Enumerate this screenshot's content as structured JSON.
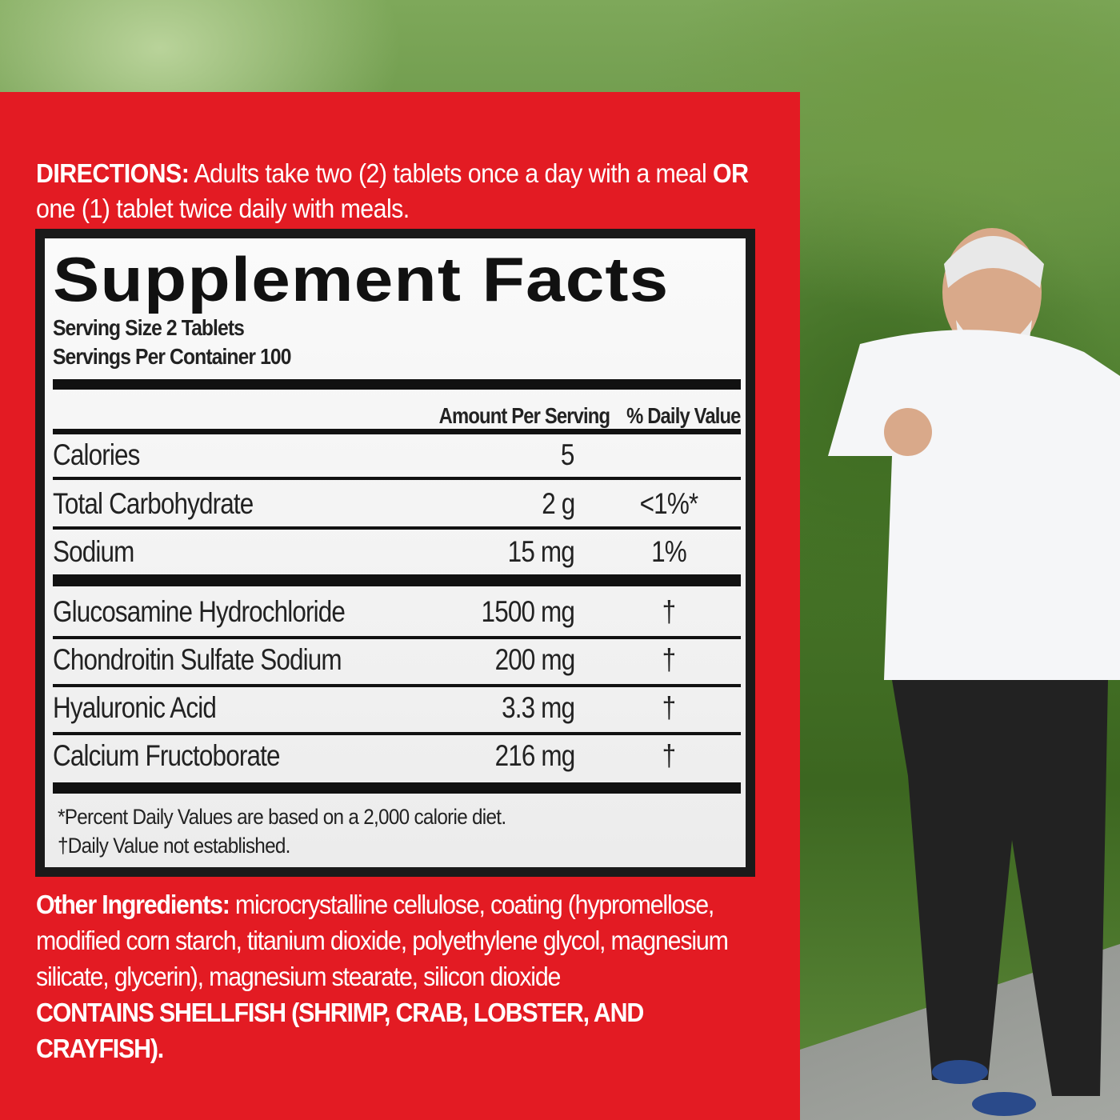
{
  "directions": {
    "label": "DIRECTIONS:",
    "text": " Adults take two (2) tablets once a day with a meal ",
    "or": "OR",
    "text2": " one (1) tablet twice daily with meals."
  },
  "facts": {
    "title": "Supplement Facts",
    "serving_size": "Serving Size 2 Tablets",
    "servings_per_container": "Servings Per Container 100",
    "col_amount": "Amount Per Serving",
    "col_dv": "% Daily Value",
    "rows": [
      {
        "name": "Calories",
        "amount": "5",
        "dv": ""
      },
      {
        "name": "Total Carbohydrate",
        "amount": "2 g",
        "dv": "<1%*"
      },
      {
        "name": "Sodium",
        "amount": "15 mg",
        "dv": "1%"
      },
      {
        "name": "Glucosamine Hydrochloride",
        "amount": "1500 mg",
        "dv": "†"
      },
      {
        "name": "Chondroitin Sulfate Sodium",
        "amount": "200 mg",
        "dv": "†"
      },
      {
        "name": "Hyaluronic Acid",
        "amount": "3.3 mg",
        "dv": "†"
      },
      {
        "name": "Calcium Fructoborate",
        "amount": "216 mg",
        "dv": "†"
      }
    ],
    "footnote1": "*Percent Daily Values are based on a 2,000 calorie diet.",
    "footnote2": "†Daily Value not established."
  },
  "other": {
    "label": "Other Ingredients:",
    "text": " microcrystalline cellulose, coating (hypromellose, modified corn starch, titanium dioxide, polyethylene glycol, magnesium silicate, glycerin), magnesium stearate, silicon dioxide",
    "allergen": "CONTAINS SHELLFISH (SHRIMP, CRAB, LOBSTER, AND CRAYFISH)."
  },
  "colors": {
    "panel": "#e31b23",
    "text": "#ffffff"
  }
}
